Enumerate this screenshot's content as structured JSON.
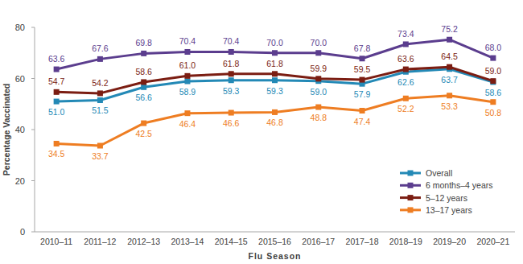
{
  "chart_data": {
    "type": "line",
    "x_label": "Flu Season",
    "y_label": "Percentage Vaccinated",
    "categories": [
      "2010–11",
      "2011–12",
      "2012–13",
      "2013–14",
      "2014–15",
      "2015–16",
      "2016–17",
      "2017–18",
      "2018–19",
      "2019–20",
      "2020–21"
    ],
    "series": [
      {
        "name": "Overall",
        "color": "#2389b6",
        "values": [
          51.0,
          51.5,
          56.6,
          58.9,
          59.3,
          59.3,
          59.0,
          57.9,
          62.6,
          63.7,
          58.6
        ],
        "value_labels": [
          "51.0",
          "51.5",
          "56.6",
          "58.9",
          "59.3",
          "59.3",
          "59.0",
          "57.9",
          "62.6",
          "63.7",
          "58.6"
        ]
      },
      {
        "name": "6 months–4 years",
        "color": "#5b3d8e",
        "values": [
          63.6,
          67.6,
          69.8,
          70.4,
          70.4,
          70.0,
          70.0,
          67.8,
          73.4,
          75.2,
          68.0
        ],
        "value_labels": [
          "63.6",
          "67.6",
          "69.8",
          "70.4",
          "70.4",
          "70.0",
          "70.0",
          "67.8",
          "73.4",
          "75.2",
          "68.0"
        ]
      },
      {
        "name": "5–12 years",
        "color": "#7b1d12",
        "values": [
          54.7,
          54.2,
          58.6,
          61.0,
          61.8,
          61.8,
          59.9,
          59.5,
          63.6,
          64.5,
          59.0
        ],
        "value_labels": [
          "54.7",
          "54.2",
          "58.6",
          "61.0",
          "61.8",
          "61.8",
          "59.9",
          "59.5",
          "63.6",
          "64.5",
          "59.0"
        ]
      },
      {
        "name": "13–17 years",
        "color": "#ee7d22",
        "values": [
          34.5,
          33.7,
          42.5,
          46.4,
          46.6,
          46.8,
          48.8,
          47.4,
          52.2,
          53.3,
          50.8
        ],
        "value_labels": [
          "34.5",
          "33.7",
          "42.5",
          "46.4",
          "46.6",
          "46.8",
          "48.8",
          "47.4",
          "52.2",
          "53.3",
          "50.8"
        ]
      }
    ],
    "ylim": [
      0,
      80
    ],
    "yticks": [
      0,
      20,
      40,
      60,
      80
    ],
    "grid": false,
    "legend": "lower right",
    "data_labels": true,
    "marker": "square",
    "line_style": "solid"
  }
}
